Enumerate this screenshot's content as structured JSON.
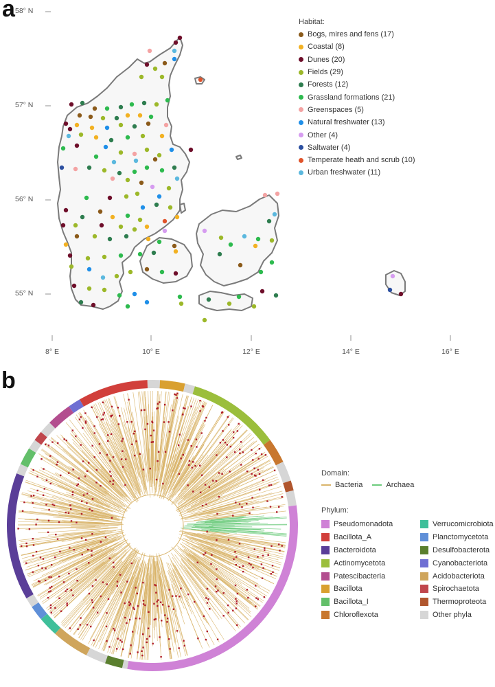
{
  "panel_a": {
    "label": "a",
    "lat_labels": [
      "58° N",
      "57° N",
      "56° N",
      "55° N"
    ],
    "lon_labels": [
      "8° E",
      "10° E",
      "12° E",
      "14° E",
      "16° E"
    ],
    "legend": {
      "title": "Habitat:",
      "items": [
        {
          "label": "Bogs, mires and fens (17)",
          "color": "#8B5A1A"
        },
        {
          "label": "Coastal (8)",
          "color": "#F2B122"
        },
        {
          "label": "Dunes (20)",
          "color": "#6E0E2A"
        },
        {
          "label": "Fields (29)",
          "color": "#9CB829"
        },
        {
          "label": "Forests (12)",
          "color": "#2E7D4F"
        },
        {
          "label": "Grassland formations (21)",
          "color": "#2DBA4E"
        },
        {
          "label": "Greenspaces (5)",
          "color": "#F4A3A3"
        },
        {
          "label": "Natural freshwater (13)",
          "color": "#1F8FE8"
        },
        {
          "label": "Other (4)",
          "color": "#D69CF0"
        },
        {
          "label": "Saltwater (4)",
          "color": "#2C4FA0"
        },
        {
          "label": "Temperate heath and scrub (10)",
          "color": "#E0532A"
        },
        {
          "label": "Urban freshwater (11)",
          "color": "#5BB8DE"
        }
      ]
    }
  },
  "panel_b": {
    "label": "b",
    "domain_legend": {
      "title": "Domain:",
      "items": [
        {
          "label": "Bacteria",
          "color": "#D9B46A"
        },
        {
          "label": "Archaea",
          "color": "#6CCB7C"
        }
      ]
    },
    "phylum_legend": {
      "title": "Phylum:",
      "items": [
        {
          "label": "Pseudomonadota",
          "color": "#CF82D6"
        },
        {
          "label": "Bacillota_A",
          "color": "#D13F3B"
        },
        {
          "label": "Bacteroidota",
          "color": "#5A3E98"
        },
        {
          "label": "Actinomycetota",
          "color": "#9BBE3C"
        },
        {
          "label": "Patescibacteria",
          "color": "#B34E8F"
        },
        {
          "label": "Bacillota",
          "color": "#D9A030"
        },
        {
          "label": "Bacillota_I",
          "color": "#63BF6A"
        },
        {
          "label": "Chloroflexota",
          "color": "#C8772E"
        },
        {
          "label": "Verrucomicrobiota",
          "color": "#3FBF9A"
        },
        {
          "label": "Planctomycetota",
          "color": "#5F8FD8"
        },
        {
          "label": "Desulfobacterota",
          "color": "#5A7F2E"
        },
        {
          "label": "Cyanobacteriota",
          "color": "#6F6FD3"
        },
        {
          "label": "Acidobacteriota",
          "color": "#CFA55C"
        },
        {
          "label": "Spirochaetota",
          "color": "#C0464C"
        },
        {
          "label": "Thermoproteota",
          "color": "#B0562E"
        },
        {
          "label": "Other phyla",
          "color": "#D6D6D6"
        }
      ]
    }
  }
}
